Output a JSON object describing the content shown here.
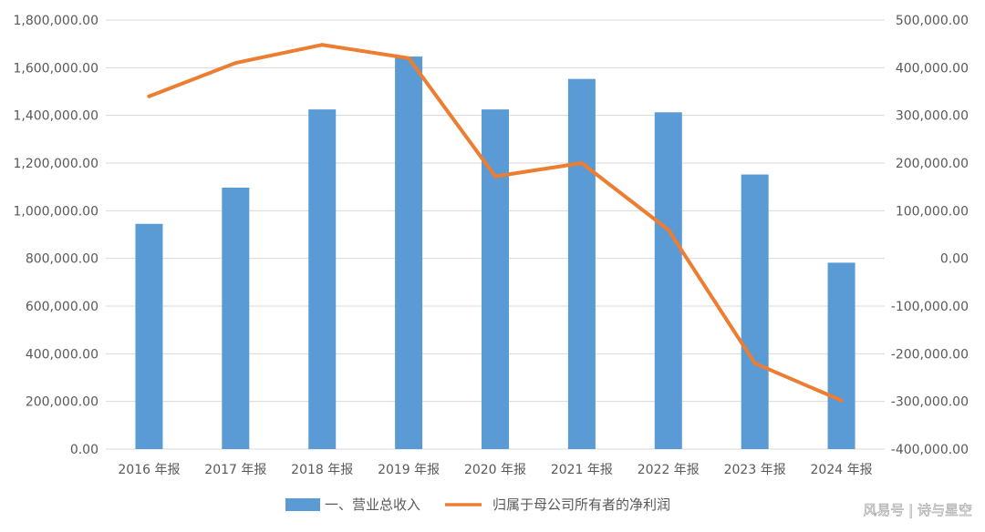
{
  "chart_data": {
    "type": "bar+line",
    "categories": [
      "2016 年报",
      "2017 年报",
      "2018 年报",
      "2019 年报",
      "2020 年报",
      "2021 年报",
      "2022 年报",
      "2023 年报",
      "2024 年报"
    ],
    "series": [
      {
        "name": "一、营业总收入",
        "type": "bar",
        "axis": "left",
        "color": "#5B9BD5",
        "values": [
          945000,
          1097000,
          1425000,
          1647000,
          1425000,
          1553000,
          1413000,
          1152000,
          782000
        ]
      },
      {
        "name": "归属于母公司所有者的净利润",
        "type": "line",
        "axis": "right",
        "color": "#ED7D31",
        "values": [
          340000,
          410000,
          448000,
          420000,
          172000,
          200000,
          60000,
          -220000,
          -298000
        ]
      }
    ],
    "left_axis": {
      "ylim": [
        0,
        1800000
      ],
      "tick_labels": [
        "0.00",
        "200,000.00",
        "400,000.00",
        "600,000.00",
        "800,000.00",
        "1,000,000.00",
        "1,200,000.00",
        "1,400,000.00",
        "1,600,000.00",
        "1,800,000.00"
      ]
    },
    "right_axis": {
      "ylim": [
        -400000,
        500000
      ],
      "tick_labels": [
        "-400,000.00",
        "-300,000.00",
        "-200,000.00",
        "-100,000.00",
        "0.00",
        "100,000.00",
        "200,000.00",
        "300,000.00",
        "400,000.00",
        "500,000.00"
      ]
    },
    "grid": true,
    "legend": "bottom-center"
  },
  "watermark": {
    "text": "风易号 | 诗与星空"
  }
}
